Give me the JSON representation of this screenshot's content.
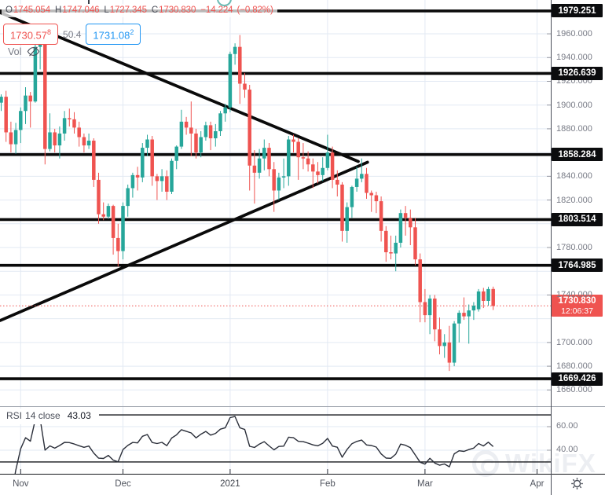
{
  "legend": {
    "ohlc": {
      "o_label": "O",
      "o_value": "1745.054",
      "h_label": "H",
      "h_value": "1747.046",
      "l_label": "L",
      "l_value": "1727.345",
      "c_label": "C",
      "c_value": "1730.830",
      "change": "−14.224",
      "change_pct": "(−0.82%)"
    },
    "bid": {
      "value": "1730.57",
      "sup": "8"
    },
    "spread": "50.4",
    "ask": {
      "value": "1731.08",
      "sup": "2"
    },
    "vol_label": "Vol"
  },
  "rsi_legend": {
    "title": "RSI",
    "params": "14 close",
    "value": "43.03"
  },
  "price_axis": {
    "last_price_label": "1730.830",
    "countdown": "12:06:37"
  },
  "watermark": {
    "text": "WikiFX"
  },
  "colors": {
    "up": "#26a69a",
    "down": "#ef5350",
    "line": "#0a0a0a",
    "grid": "#e2e9f3",
    "axis_text": "#787b86",
    "level_bg": "#0b0c0e",
    "last_price_bg": "#ef5350",
    "ask_accent": "#2196f3",
    "rsi_line": "#2a2e39"
  },
  "chart_data": {
    "type": "candlestick",
    "columns": [
      "date",
      "open",
      "high",
      "low",
      "close"
    ],
    "candles": [
      [
        "2020-10-27",
        1902,
        1909,
        1895,
        1907
      ],
      [
        "2020-10-28",
        1907,
        1912,
        1869,
        1877
      ],
      [
        "2020-10-29",
        1877,
        1886,
        1860,
        1867
      ],
      [
        "2020-10-30",
        1867,
        1885,
        1859,
        1879
      ],
      [
        "2020-11-02",
        1879,
        1898,
        1868,
        1895
      ],
      [
        "2020-11-03",
        1895,
        1915,
        1884,
        1908
      ],
      [
        "2020-11-04",
        1908,
        1911,
        1881,
        1903
      ],
      [
        "2020-11-05",
        1903,
        1953,
        1902,
        1949
      ],
      [
        "2020-11-06",
        1949,
        1960,
        1930,
        1951
      ],
      [
        "2020-11-09",
        1951,
        1965,
        1850,
        1863
      ],
      [
        "2020-11-10",
        1863,
        1893,
        1861,
        1877
      ],
      [
        "2020-11-11",
        1877,
        1880,
        1860,
        1866
      ],
      [
        "2020-11-12",
        1866,
        1882,
        1855,
        1876
      ],
      [
        "2020-11-13",
        1876,
        1895,
        1870,
        1889
      ],
      [
        "2020-11-16",
        1889,
        1897,
        1882,
        1888
      ],
      [
        "2020-11-17",
        1888,
        1894,
        1876,
        1881
      ],
      [
        "2020-11-18",
        1881,
        1886,
        1865,
        1873
      ],
      [
        "2020-11-19",
        1873,
        1876,
        1860,
        1866
      ],
      [
        "2020-11-20",
        1866,
        1876,
        1863,
        1870
      ],
      [
        "2020-11-23",
        1870,
        1872,
        1831,
        1837
      ],
      [
        "2020-11-24",
        1837,
        1843,
        1800,
        1808
      ],
      [
        "2020-11-25",
        1808,
        1818,
        1803,
        1806
      ],
      [
        "2020-11-26",
        1806,
        1817,
        1804,
        1815
      ],
      [
        "2020-11-27",
        1815,
        1816,
        1774,
        1788
      ],
      [
        "2020-11-30",
        1788,
        1800,
        1764,
        1777
      ],
      [
        "2020-12-01",
        1777,
        1818,
        1770,
        1815
      ],
      [
        "2020-12-02",
        1815,
        1833,
        1806,
        1830
      ],
      [
        "2020-12-03",
        1830,
        1843,
        1822,
        1841
      ],
      [
        "2020-12-04",
        1841,
        1848,
        1828,
        1839
      ],
      [
        "2020-12-07",
        1839,
        1868,
        1835,
        1864
      ],
      [
        "2020-12-08",
        1864,
        1875,
        1857,
        1871
      ],
      [
        "2020-12-09",
        1871,
        1874,
        1832,
        1840
      ],
      [
        "2020-12-10",
        1840,
        1842,
        1820,
        1836
      ],
      [
        "2020-12-11",
        1836,
        1846,
        1827,
        1840
      ],
      [
        "2020-12-14",
        1840,
        1845,
        1820,
        1827
      ],
      [
        "2020-12-15",
        1827,
        1855,
        1825,
        1853
      ],
      [
        "2020-12-16",
        1853,
        1866,
        1846,
        1865
      ],
      [
        "2020-12-17",
        1865,
        1896,
        1863,
        1886
      ],
      [
        "2020-12-18",
        1886,
        1890,
        1875,
        1881
      ],
      [
        "2020-12-21",
        1881,
        1903,
        1857,
        1876
      ],
      [
        "2020-12-22",
        1876,
        1880,
        1855,
        1860
      ],
      [
        "2020-12-23",
        1860,
        1878,
        1856,
        1873
      ],
      [
        "2020-12-24",
        1873,
        1886,
        1870,
        1883
      ],
      [
        "2020-12-28",
        1883,
        1886,
        1862,
        1872
      ],
      [
        "2020-12-29",
        1872,
        1884,
        1865,
        1878
      ],
      [
        "2020-12-30",
        1878,
        1895,
        1874,
        1893
      ],
      [
        "2020-12-31",
        1893,
        1901,
        1886,
        1898
      ],
      [
        "2021-01-04",
        1898,
        1945,
        1894,
        1943
      ],
      [
        "2021-01-05",
        1943,
        1952,
        1934,
        1949
      ],
      [
        "2021-01-06",
        1949,
        1959,
        1901,
        1918
      ],
      [
        "2021-01-07",
        1918,
        1927,
        1906,
        1913
      ],
      [
        "2021-01-08",
        1913,
        1917,
        1828,
        1849
      ],
      [
        "2021-01-11",
        1849,
        1862,
        1817,
        1843
      ],
      [
        "2021-01-12",
        1843,
        1863,
        1838,
        1855
      ],
      [
        "2021-01-13",
        1855,
        1871,
        1845,
        1864
      ],
      [
        "2021-01-14",
        1864,
        1868,
        1840,
        1846
      ],
      [
        "2021-01-15",
        1846,
        1852,
        1810,
        1828
      ],
      [
        "2021-01-18",
        1828,
        1843,
        1820,
        1839
      ],
      [
        "2021-01-19",
        1839,
        1855,
        1830,
        1840
      ],
      [
        "2021-01-20",
        1840,
        1874,
        1832,
        1871
      ],
      [
        "2021-01-21",
        1871,
        1875,
        1860,
        1869
      ],
      [
        "2021-01-22",
        1869,
        1872,
        1837,
        1856
      ],
      [
        "2021-01-25",
        1856,
        1868,
        1846,
        1855
      ],
      [
        "2021-01-26",
        1855,
        1861,
        1844,
        1850
      ],
      [
        "2021-01-27",
        1850,
        1855,
        1830,
        1844
      ],
      [
        "2021-01-28",
        1844,
        1852,
        1834,
        1841
      ],
      [
        "2021-01-29",
        1841,
        1856,
        1836,
        1847
      ],
      [
        "2021-02-01",
        1847,
        1875,
        1845,
        1860
      ],
      [
        "2021-02-02",
        1860,
        1865,
        1830,
        1837
      ],
      [
        "2021-02-03",
        1837,
        1845,
        1823,
        1833
      ],
      [
        "2021-02-04",
        1833,
        1835,
        1785,
        1794
      ],
      [
        "2021-02-05",
        1794,
        1818,
        1784,
        1814
      ],
      [
        "2021-02-08",
        1814,
        1832,
        1805,
        1831
      ],
      [
        "2021-02-09",
        1831,
        1848,
        1827,
        1838
      ],
      [
        "2021-02-10",
        1838,
        1855,
        1835,
        1842
      ],
      [
        "2021-02-11",
        1842,
        1847,
        1821,
        1826
      ],
      [
        "2021-02-12",
        1826,
        1828,
        1810,
        1824
      ],
      [
        "2021-02-15",
        1824,
        1827,
        1809,
        1819
      ],
      [
        "2021-02-16",
        1819,
        1823,
        1785,
        1794
      ],
      [
        "2021-02-17",
        1794,
        1798,
        1768,
        1776
      ],
      [
        "2021-02-18",
        1776,
        1790,
        1770,
        1775
      ],
      [
        "2021-02-19",
        1775,
        1790,
        1760,
        1784
      ],
      [
        "2021-02-22",
        1784,
        1812,
        1780,
        1809
      ],
      [
        "2021-02-23",
        1809,
        1815,
        1790,
        1805
      ],
      [
        "2021-02-24",
        1805,
        1812,
        1782,
        1797
      ],
      [
        "2021-02-25",
        1797,
        1805,
        1765,
        1770
      ],
      [
        "2021-02-26",
        1770,
        1775,
        1717,
        1734
      ],
      [
        "2021-03-01",
        1734,
        1745,
        1717,
        1723
      ],
      [
        "2021-03-02",
        1723,
        1740,
        1707,
        1737
      ],
      [
        "2021-03-03",
        1737,
        1740,
        1701,
        1711
      ],
      [
        "2021-03-04",
        1711,
        1721,
        1690,
        1697
      ],
      [
        "2021-03-05",
        1697,
        1707,
        1687,
        1700
      ],
      [
        "2021-03-08",
        1700,
        1714,
        1676,
        1683
      ],
      [
        "2021-03-09",
        1683,
        1718,
        1680,
        1716
      ],
      [
        "2021-03-10",
        1716,
        1727,
        1700,
        1725
      ],
      [
        "2021-03-11",
        1725,
        1738,
        1719,
        1722
      ],
      [
        "2021-03-12",
        1722,
        1732,
        1699,
        1727
      ],
      [
        "2021-03-15",
        1727,
        1734,
        1719,
        1731
      ],
      [
        "2021-03-16",
        1728,
        1745,
        1726,
        1743
      ],
      [
        "2021-03-17",
        1743,
        1746,
        1729,
        1735
      ],
      [
        "2021-03-18",
        1735,
        1747,
        1731,
        1745
      ],
      [
        "2021-03-19",
        1745.054,
        1747.046,
        1727.345,
        1730.83
      ]
    ],
    "sr_levels": [
      1979.251,
      1926.639,
      1858.284,
      1803.514,
      1764.985,
      1669.426
    ],
    "last_price": 1730.83,
    "price_ticks": [
      1960,
      1940,
      1920,
      1900,
      1880,
      1840,
      1820,
      1780,
      1740,
      1700,
      1680,
      1660
    ],
    "ylim": [
      1646.3,
      1988.5
    ],
    "trendlines": [
      {
        "name": "descending-resistance",
        "i1": -0.2,
        "p1": 1977.9,
        "i2": 73.3,
        "p2": 1852.5
      },
      {
        "name": "ascending-support",
        "i1": -0.2,
        "p1": 1718.5,
        "i2": 75.2,
        "p2": 1851.8
      }
    ],
    "x_labels": [
      {
        "text": "Nov",
        "i": 4
      },
      {
        "text": "Dec",
        "i": 25
      },
      {
        "text": "2021",
        "i": 47,
        "year": true
      },
      {
        "text": "Feb",
        "i": 67
      },
      {
        "text": "Mar",
        "i": 87
      },
      {
        "text": "Apr",
        "i": 110
      }
    ],
    "rsi": {
      "period": 14,
      "source": "close",
      "last": 43.03,
      "bands": [
        70,
        30
      ],
      "ticks": [
        60,
        40
      ],
      "ylim": [
        19.3,
        76.7
      ]
    }
  }
}
